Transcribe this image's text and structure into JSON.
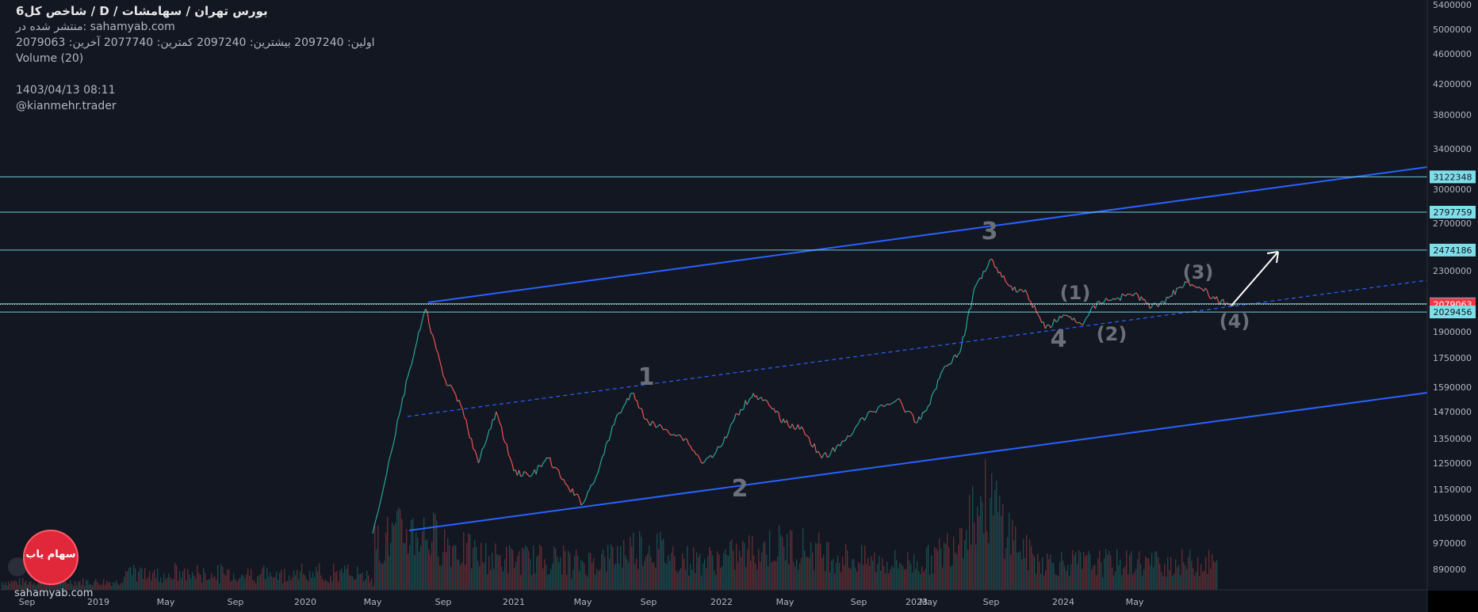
{
  "header": {
    "title": "شاخص کل6  /  D  /  بورس تهران / سهامشات",
    "published": "منتشر شده در: sahamyab.com",
    "ohlc": "اولین: 2097240  بیشترین: 2097240  کمترین: 2077740  آخرین: 2079063",
    "volume": "Volume (20)",
    "date": "1403/04/13 08:11",
    "author": "@kianmehr.trader"
  },
  "logo": {
    "text": "سهام یاب",
    "site": "sahamyab.com"
  },
  "colors": {
    "background": "#131722",
    "text": "#b2b5be",
    "channel": "#2962ff",
    "hline": "#7fdfe9",
    "label_bg": "#7fdfe9",
    "last_price": "#f23645",
    "up": "#26a69a",
    "down": "#ef5350",
    "wave_label": "#6b6f7a",
    "arrow": "#ffffff"
  },
  "chart_data": {
    "type": "line",
    "ylim": [
      800000,
      5400000
    ],
    "y_ticks": [
      "5400000",
      "5000000",
      "4600000",
      "4200000",
      "3800000",
      "3400000",
      "3000000",
      "2700000",
      "2300000",
      "1900000",
      "1750000",
      "1590000",
      "1470000",
      "1350000",
      "1250000",
      "1150000",
      "1050000",
      "970000",
      "890000"
    ],
    "x_ticks": [
      "Sep",
      "2019",
      "May",
      "Sep",
      "2020",
      "May",
      "Sep",
      "2021",
      "May",
      "Sep",
      "2022",
      "May",
      "Sep",
      "2023",
      "May",
      "Sep",
      "2024",
      "May"
    ],
    "price_labels": [
      {
        "text": "3122348",
        "value": 3122348,
        "kind": "level"
      },
      {
        "text": "2797759",
        "value": 2797759,
        "kind": "level"
      },
      {
        "text": "2474186",
        "value": 2474186,
        "kind": "level"
      },
      {
        "text": "2082868",
        "value": 2082868,
        "kind": "level"
      },
      {
        "text": "2079063",
        "value": 2079063,
        "kind": "last"
      },
      {
        "text": "2029456",
        "value": 2029456,
        "kind": "level"
      }
    ],
    "wave_labels": [
      "1",
      "2",
      "3",
      "4",
      "(1)",
      "(2)",
      "(3)",
      "(4)"
    ],
    "series": [
      {
        "date": [
          "2020-05",
          "2020-06",
          "2020-07",
          "2020-08",
          "2020-09",
          "2020-10",
          "2020-11",
          "2020-12",
          "2021-01",
          "2021-02",
          "2021-03",
          "2021-04",
          "2021-05",
          "2021-06",
          "2021-07",
          "2021-08",
          "2021-09",
          "2021-10",
          "2021-11",
          "2021-12",
          "2022-01",
          "2022-02",
          "2022-03",
          "2022-04",
          "2022-05",
          "2022-06",
          "2022-07",
          "2022-08",
          "2022-09",
          "2022-10",
          "2022-11",
          "2022-12",
          "2023-01",
          "2023-02",
          "2023-03",
          "2023-04",
          "2023-05",
          "2023-06",
          "2023-07",
          "2023-08",
          "2023-09",
          "2023-10",
          "2023-11",
          "2023-12",
          "2024-01",
          "2024-02",
          "2024-03",
          "2024-04",
          "2024-05",
          "2024-06",
          "2024-07"
        ],
        "values": [
          1000000,
          1280000,
          1650000,
          2050000,
          1650000,
          1500000,
          1250000,
          1470000,
          1220000,
          1200000,
          1270000,
          1170000,
          1100000,
          1230000,
          1440000,
          1560000,
          1420000,
          1390000,
          1350000,
          1250000,
          1320000,
          1460000,
          1560000,
          1500000,
          1420000,
          1390000,
          1270000,
          1320000,
          1420000,
          1490000,
          1530000,
          1420000,
          1500000,
          1700000,
          1780000,
          2200000,
          2400000,
          2200000,
          2150000,
          1920000,
          2010000,
          1950000,
          2100000,
          2120000,
          2150000,
          2060000,
          2120000,
          2230000,
          2180000,
          2100000,
          2079063
        ]
      }
    ]
  }
}
